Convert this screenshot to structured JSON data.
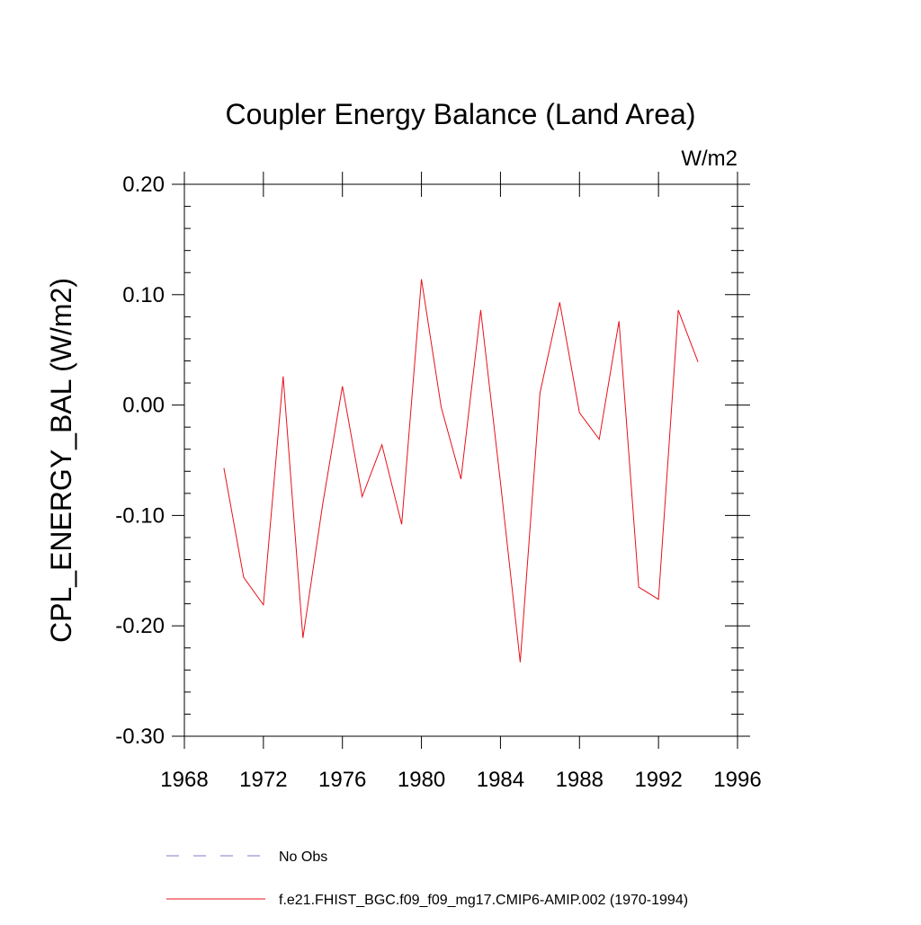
{
  "chart_data": {
    "type": "line",
    "title": "Coupler Energy Balance (Land Area)",
    "units": "W/m2",
    "ylabel": "CPL_ENERGY_BAL  (W/m2)",
    "xlabel": "",
    "xlim": [
      1968,
      1996
    ],
    "ylim": [
      -0.3,
      0.2
    ],
    "x_ticks": [
      1968,
      1972,
      1976,
      1980,
      1984,
      1988,
      1992,
      1996
    ],
    "x_tick_labels": [
      "1968",
      "1972",
      "1976",
      "1980",
      "1984",
      "1988",
      "1992",
      "1996"
    ],
    "y_ticks": [
      0.2,
      0.1,
      0.0,
      -0.1,
      -0.2,
      -0.3
    ],
    "y_tick_labels": [
      "0.20",
      "0.10",
      "0.00",
      "-0.10",
      "-0.20",
      "-0.30"
    ],
    "grid": false,
    "legend_position": "bottom",
    "series": [
      {
        "name": "No Obs",
        "style": "dashed",
        "color": "#7b7bc8",
        "x": [],
        "values": []
      },
      {
        "name": "f.e21.FHIST_BGC.f09_f09_mg17.CMIP6-AMIP.002 (1970-1994)",
        "style": "solid",
        "color": "#e8101a",
        "x": [
          1970,
          1971,
          1972,
          1973,
          1974,
          1975,
          1976,
          1977,
          1978,
          1979,
          1980,
          1981,
          1982,
          1983,
          1984,
          1985,
          1986,
          1987,
          1988,
          1989,
          1990,
          1991,
          1992,
          1993,
          1994
        ],
        "values": [
          -0.057,
          -0.156,
          -0.181,
          0.026,
          -0.211,
          -0.09,
          0.017,
          -0.083,
          -0.036,
          -0.108,
          0.114,
          -0.002,
          -0.067,
          0.086,
          -0.07,
          -0.233,
          0.011,
          0.093,
          -0.007,
          -0.031,
          0.076,
          -0.165,
          -0.176,
          0.086,
          0.039
        ]
      }
    ]
  }
}
